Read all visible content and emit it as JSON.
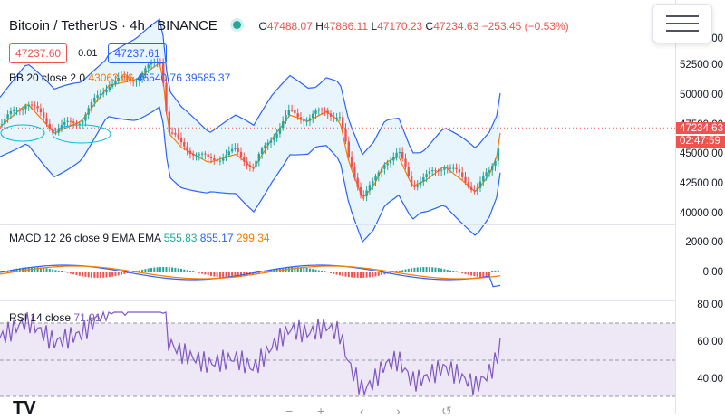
{
  "header": {
    "symbol": "Bitcoin / TetherUS · 4h · BINANCE",
    "open_k": "O",
    "open": "47488.07",
    "high_k": "H",
    "high": "47886.11",
    "low_k": "L",
    "low": "47170.23",
    "close_k": "C",
    "close": "47234.63",
    "change": "−253.45 (−0.53%)"
  },
  "quote": {
    "bid": "47237.60",
    "spread": "0.01",
    "ask": "47237.61"
  },
  "indicators": {
    "bb": {
      "label": "BB 20 close 2 0",
      "basis": "43063.06",
      "upper": "46540.76",
      "lower": "39585.37"
    },
    "macd": {
      "label": "MACD 12 26 close 9 EMA EMA",
      "hist": "555.83",
      "macd": "855.17",
      "signal": "299.34"
    },
    "rsi": {
      "label": "RSI 14 close",
      "value": "71.91"
    }
  },
  "price_axis": {
    "main": [
      "55000.00",
      "52500.00",
      "50000.00",
      "47500.00",
      "45000.00",
      "42500.00",
      "40000.00"
    ],
    "macd": [
      "2000.00",
      "0.00"
    ],
    "rsi": [
      "80.00",
      "60.00",
      "40.00"
    ],
    "last_price": "47234.63",
    "countdown": "02:47:59"
  },
  "colors": {
    "up": "#26a69a",
    "down": "#ef5350",
    "bb_band": "#2962ff",
    "bb_basis": "#f57c00",
    "rsi_line": "#7e57c2",
    "rsi_fill": "#ede7f6"
  },
  "icons": {
    "menu": "hamburger-menu-icon",
    "logo": "tradingview-logo-icon"
  },
  "bottom_icons": [
    "minus-icon",
    "plus-icon",
    "scroll-left-icon",
    "scroll-right-icon",
    "reset-icon"
  ]
}
